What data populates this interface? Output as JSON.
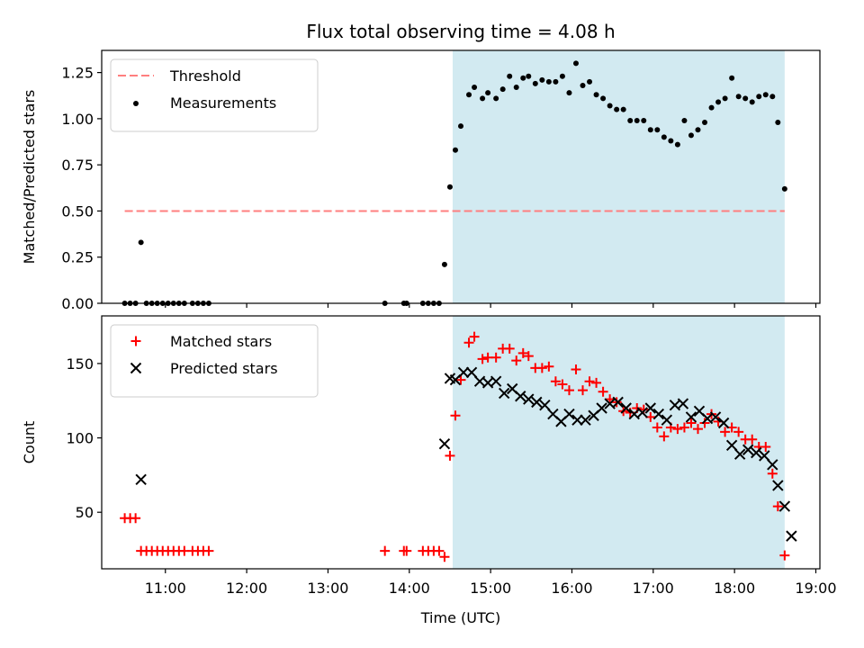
{
  "chart_data": {
    "type": "scatter",
    "title": "Flux total observing time = 4.08 h",
    "xlabel": "Time (UTC)",
    "x_ticks": [
      "11:00",
      "12:00",
      "13:00",
      "14:00",
      "15:00",
      "16:00",
      "17:00",
      "18:00",
      "19:00"
    ],
    "xlim": [
      "10:13",
      "19:03"
    ],
    "shaded_interval": {
      "start": "14:32",
      "end": "18:37",
      "color": "#add8e6"
    },
    "panels": [
      {
        "ylabel": "Matched/Predicted stars",
        "ylim": [
          0,
          1.37
        ],
        "y_ticks": [
          "0.00",
          "0.25",
          "0.50",
          "0.75",
          "1.00",
          "1.25"
        ],
        "legend_position": "upper left",
        "threshold": {
          "name": "Threshold",
          "value": 0.5,
          "x_start": "10:30",
          "x_end": "18:37",
          "color": "#ff7f7f"
        },
        "series": [
          {
            "name": "Measurements",
            "marker": "dot",
            "color": "#000000",
            "points": [
              [
                "10:30",
                0
              ],
              [
                "10:34",
                0
              ],
              [
                "10:38",
                0
              ],
              [
                "10:42",
                0.33
              ],
              [
                "10:46",
                0
              ],
              [
                "10:50",
                0
              ],
              [
                "10:54",
                0
              ],
              [
                "10:58",
                0
              ],
              [
                "11:02",
                0
              ],
              [
                "11:06",
                0
              ],
              [
                "11:10",
                0
              ],
              [
                "11:14",
                0
              ],
              [
                "11:20",
                0
              ],
              [
                "11:24",
                0
              ],
              [
                "11:28",
                0
              ],
              [
                "11:32",
                0
              ],
              [
                "13:42",
                0
              ],
              [
                "13:56",
                0
              ],
              [
                "13:58",
                0
              ],
              [
                "14:10",
                0
              ],
              [
                "14:14",
                0
              ],
              [
                "14:18",
                0
              ],
              [
                "14:22",
                0
              ],
              [
                "14:26",
                0.21
              ],
              [
                "14:30",
                0.63
              ],
              [
                "14:34",
                0.83
              ],
              [
                "14:38",
                0.96
              ],
              [
                "14:44",
                1.13
              ],
              [
                "14:48",
                1.17
              ],
              [
                "14:54",
                1.11
              ],
              [
                "14:58",
                1.14
              ],
              [
                "15:04",
                1.11
              ],
              [
                "15:09",
                1.16
              ],
              [
                "15:14",
                1.23
              ],
              [
                "15:19",
                1.17
              ],
              [
                "15:24",
                1.22
              ],
              [
                "15:28",
                1.23
              ],
              [
                "15:33",
                1.19
              ],
              [
                "15:38",
                1.21
              ],
              [
                "15:43",
                1.2
              ],
              [
                "15:48",
                1.2
              ],
              [
                "15:53",
                1.23
              ],
              [
                "15:58",
                1.14
              ],
              [
                "16:03",
                1.3
              ],
              [
                "16:08",
                1.18
              ],
              [
                "16:13",
                1.2
              ],
              [
                "16:18",
                1.13
              ],
              [
                "16:23",
                1.11
              ],
              [
                "16:28",
                1.07
              ],
              [
                "16:33",
                1.05
              ],
              [
                "16:38",
                1.05
              ],
              [
                "16:43",
                0.99
              ],
              [
                "16:48",
                0.99
              ],
              [
                "16:53",
                0.99
              ],
              [
                "16:58",
                0.94
              ],
              [
                "17:03",
                0.94
              ],
              [
                "17:08",
                0.9
              ],
              [
                "17:13",
                0.88
              ],
              [
                "17:18",
                0.86
              ],
              [
                "17:23",
                0.99
              ],
              [
                "17:28",
                0.91
              ],
              [
                "17:33",
                0.94
              ],
              [
                "17:38",
                0.98
              ],
              [
                "17:43",
                1.06
              ],
              [
                "17:48",
                1.09
              ],
              [
                "17:53",
                1.11
              ],
              [
                "17:58",
                1.22
              ],
              [
                "18:03",
                1.12
              ],
              [
                "18:08",
                1.11
              ],
              [
                "18:13",
                1.09
              ],
              [
                "18:18",
                1.12
              ],
              [
                "18:23",
                1.13
              ],
              [
                "18:28",
                1.12
              ],
              [
                "18:32",
                0.98
              ],
              [
                "18:37",
                0.62
              ]
            ]
          }
        ]
      },
      {
        "ylabel": "Count",
        "ylim": [
          12,
          182
        ],
        "y_ticks": [
          "50",
          "100",
          "150"
        ],
        "legend_position": "upper left",
        "series": [
          {
            "name": "Matched stars",
            "marker": "plus",
            "color": "#ff0000",
            "points": [
              [
                "10:30",
                46
              ],
              [
                "10:34",
                46
              ],
              [
                "10:38",
                46
              ],
              [
                "10:42",
                24
              ],
              [
                "10:46",
                24
              ],
              [
                "10:50",
                24
              ],
              [
                "10:54",
                24
              ],
              [
                "10:58",
                24
              ],
              [
                "11:02",
                24
              ],
              [
                "11:06",
                24
              ],
              [
                "11:10",
                24
              ],
              [
                "11:14",
                24
              ],
              [
                "11:20",
                24
              ],
              [
                "11:24",
                24
              ],
              [
                "11:28",
                24
              ],
              [
                "11:32",
                24
              ],
              [
                "13:42",
                24
              ],
              [
                "13:56",
                24
              ],
              [
                "13:58",
                24
              ],
              [
                "14:10",
                24
              ],
              [
                "14:14",
                24
              ],
              [
                "14:18",
                24
              ],
              [
                "14:22",
                24
              ],
              [
                "14:26",
                20
              ],
              [
                "14:30",
                88
              ],
              [
                "14:34",
                115
              ],
              [
                "14:38",
                139
              ],
              [
                "14:44",
                164
              ],
              [
                "14:48",
                168
              ],
              [
                "14:54",
                153
              ],
              [
                "14:58",
                154
              ],
              [
                "15:04",
                154
              ],
              [
                "15:09",
                160
              ],
              [
                "15:14",
                160
              ],
              [
                "15:19",
                152
              ],
              [
                "15:24",
                157
              ],
              [
                "15:28",
                155
              ],
              [
                "15:33",
                147
              ],
              [
                "15:38",
                147
              ],
              [
                "15:43",
                148
              ],
              [
                "15:48",
                138
              ],
              [
                "15:53",
                136
              ],
              [
                "15:58",
                132
              ],
              [
                "16:03",
                146
              ],
              [
                "16:08",
                132
              ],
              [
                "16:13",
                138
              ],
              [
                "16:18",
                137
              ],
              [
                "16:23",
                131
              ],
              [
                "16:28",
                126
              ],
              [
                "16:33",
                124
              ],
              [
                "16:38",
                118
              ],
              [
                "16:43",
                117
              ],
              [
                "16:48",
                120
              ],
              [
                "16:53",
                119
              ],
              [
                "16:58",
                114
              ],
              [
                "17:03",
                107
              ],
              [
                "17:08",
                101
              ],
              [
                "17:13",
                107
              ],
              [
                "17:18",
                106
              ],
              [
                "17:23",
                107
              ],
              [
                "17:28",
                110
              ],
              [
                "17:33",
                106
              ],
              [
                "17:38",
                110
              ],
              [
                "17:43",
                116
              ],
              [
                "17:48",
                111
              ],
              [
                "17:53",
                104
              ],
              [
                "17:58",
                107
              ],
              [
                "18:03",
                104
              ],
              [
                "18:08",
                99
              ],
              [
                "18:13",
                99
              ],
              [
                "18:18",
                94
              ],
              [
                "18:23",
                94
              ],
              [
                "18:28",
                76
              ],
              [
                "18:32",
                54
              ],
              [
                "18:37",
                21
              ]
            ]
          },
          {
            "name": "Predicted stars",
            "marker": "x",
            "color": "#000000",
            "points": [
              [
                "10:42",
                72
              ],
              [
                "14:26",
                96
              ],
              [
                "14:30",
                140
              ],
              [
                "14:34",
                139
              ],
              [
                "14:40",
                144
              ],
              [
                "14:46",
                144
              ],
              [
                "14:52",
                138
              ],
              [
                "14:58",
                137
              ],
              [
                "15:04",
                138
              ],
              [
                "15:10",
                130
              ],
              [
                "15:16",
                133
              ],
              [
                "15:22",
                128
              ],
              [
                "15:28",
                126
              ],
              [
                "15:34",
                124
              ],
              [
                "15:40",
                122
              ],
              [
                "15:46",
                116
              ],
              [
                "15:52",
                111
              ],
              [
                "15:58",
                116
              ],
              [
                "16:04",
                112
              ],
              [
                "16:10",
                112
              ],
              [
                "16:16",
                115
              ],
              [
                "16:22",
                120
              ],
              [
                "16:28",
                123
              ],
              [
                "16:34",
                124
              ],
              [
                "16:40",
                120
              ],
              [
                "16:46",
                116
              ],
              [
                "16:52",
                117
              ],
              [
                "16:58",
                120
              ],
              [
                "17:04",
                116
              ],
              [
                "17:10",
                112
              ],
              [
                "17:16",
                122
              ],
              [
                "17:22",
                123
              ],
              [
                "17:28",
                114
              ],
              [
                "17:34",
                118
              ],
              [
                "17:40",
                113
              ],
              [
                "17:46",
                114
              ],
              [
                "17:52",
                110
              ],
              [
                "17:58",
                95
              ],
              [
                "18:04",
                89
              ],
              [
                "18:10",
                92
              ],
              [
                "18:16",
                90
              ],
              [
                "18:22",
                88
              ],
              [
                "18:28",
                82
              ],
              [
                "18:32",
                68
              ],
              [
                "18:37",
                54
              ],
              [
                "18:42",
                34
              ]
            ]
          }
        ]
      }
    ]
  }
}
